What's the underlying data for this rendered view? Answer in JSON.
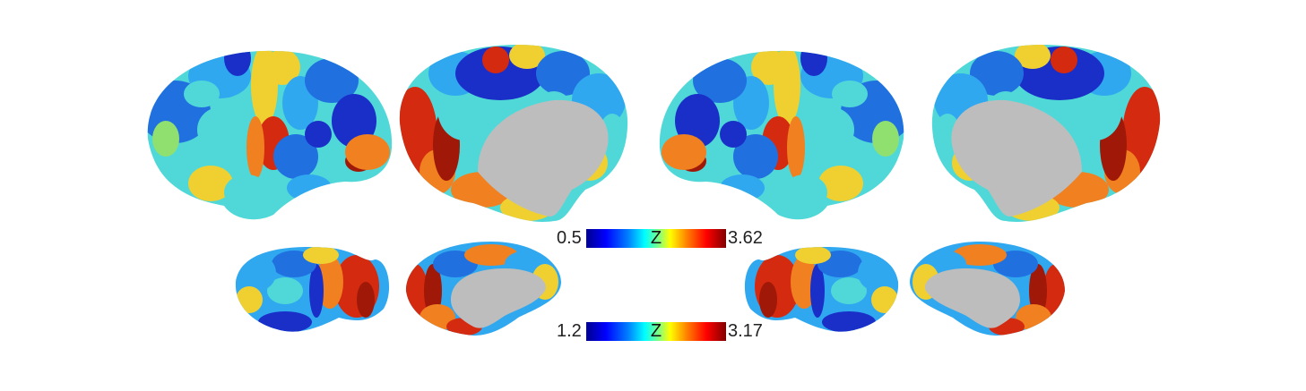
{
  "colorbars": [
    {
      "min_label": "0.5",
      "max_label": "3.62",
      "title": "Z",
      "colormap": "jet"
    },
    {
      "min_label": "1.2",
      "max_label": "3.17",
      "title": "Z",
      "colormap": "jet"
    }
  ],
  "colors": {
    "medial_wall": "#bdbdbd",
    "low": "#0000cc",
    "mid": "#40e0d0",
    "high": "#d42010"
  }
}
